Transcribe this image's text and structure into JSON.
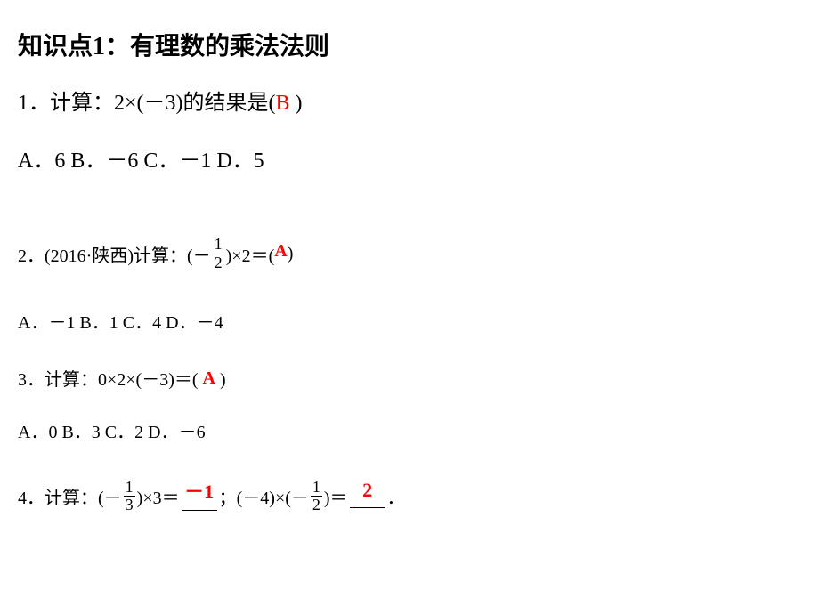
{
  "title": "知识点1：有理数的乘法法则",
  "q1": {
    "prefix": "1．计算：2×(－3)的结果是(",
    "answer": "B",
    "suffix": " )",
    "options": "A．6   B．－6   C．－1   D．5"
  },
  "q2": {
    "prefix": "2．(2016·陕西)计算：(－",
    "frac_num": "1",
    "frac_den": "2",
    "mid": ")×2＝(",
    "answer": "A",
    "suffix": " )",
    "options": "A．－1   B．1   C．4   D．－4"
  },
  "q3": {
    "prefix": "3．计算：0×2×(－3)＝(",
    "answer": "A",
    "suffix": " )",
    "options": "A．0   B．3   C．2   D．－6"
  },
  "q4": {
    "prefix": "4．计算：(－",
    "frac1_num": "1",
    "frac1_den": "3",
    "mid1": ")×3＝",
    "ans1": "－1",
    "mid2": "；(－4)×(－",
    "frac2_num": "1",
    "frac2_den": "2",
    "mid3": ")＝",
    "ans2": "2",
    "suffix": "．"
  }
}
